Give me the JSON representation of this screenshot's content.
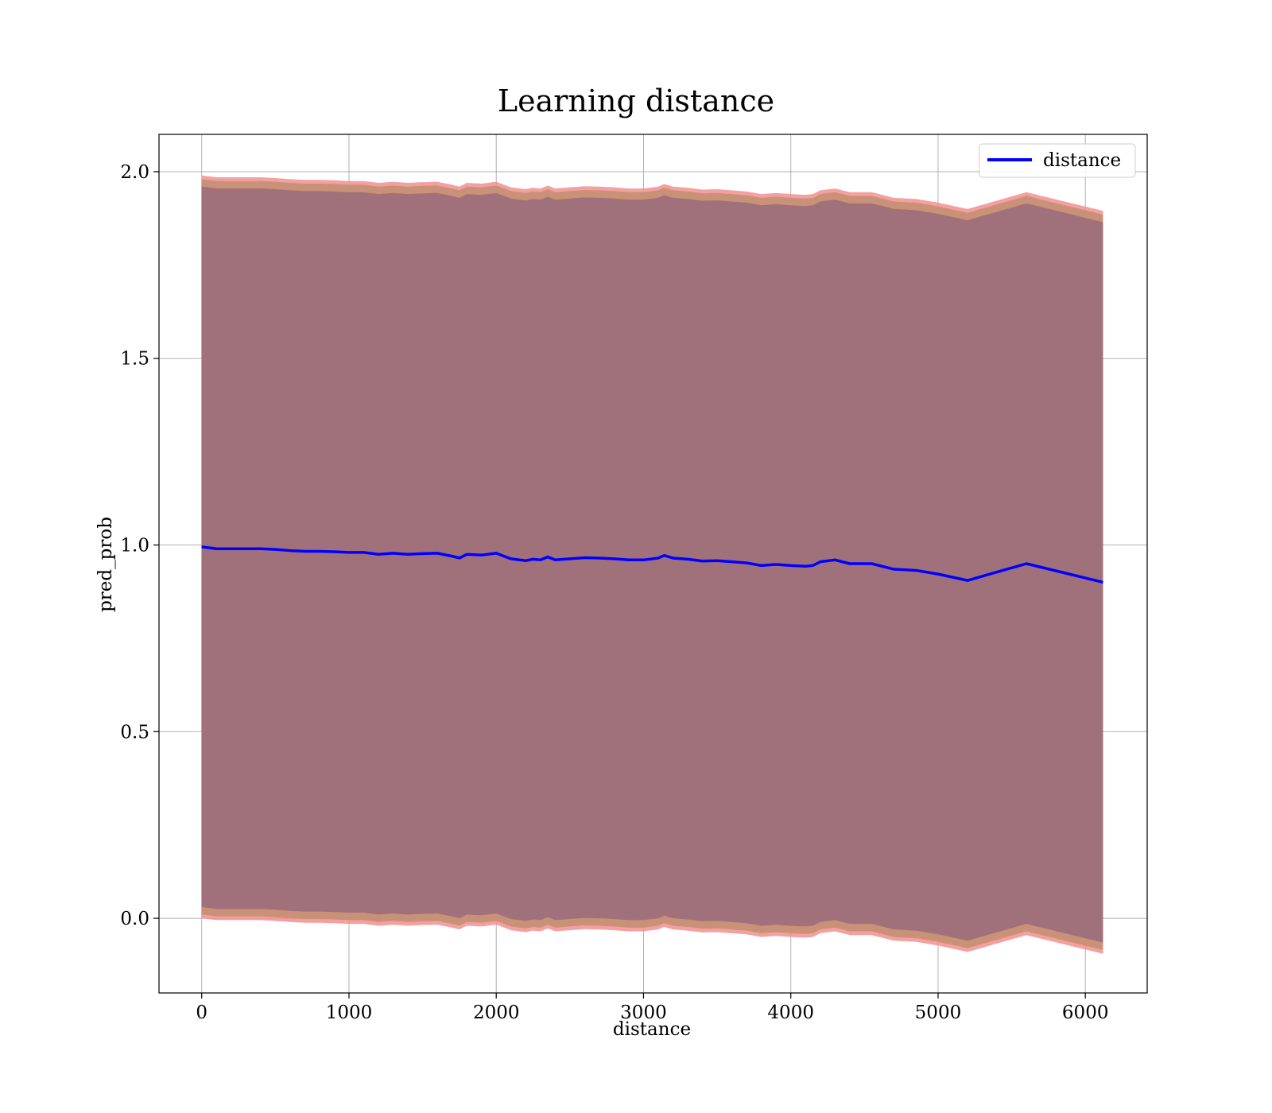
{
  "chart_data": {
    "type": "line",
    "title": "Learning distance",
    "xlabel": "distance",
    "ylabel": "pred_prob",
    "xlim": [
      -290,
      6420
    ],
    "ylim": [
      -0.2,
      2.1
    ],
    "xticks": [
      0,
      1000,
      2000,
      3000,
      4000,
      5000,
      6000
    ],
    "yticks": [
      0.0,
      0.5,
      1.0,
      1.5,
      2.0
    ],
    "xtick_labels": [
      "0",
      "1000",
      "2000",
      "3000",
      "4000",
      "5000",
      "6000"
    ],
    "ytick_labels": [
      "0.0",
      "0.5",
      "1.0",
      "1.5",
      "2.0"
    ],
    "grid": true,
    "legend_position": "upper-right",
    "colors": {
      "line": "#0000ff",
      "band_inner": "#a0717a",
      "band_middle": "#c48f72",
      "band_outer": "#f28f8f"
    },
    "series": [
      {
        "name": "distance",
        "x": [
          0,
          100,
          200,
          300,
          400,
          500,
          600,
          700,
          800,
          900,
          1000,
          1100,
          1200,
          1300,
          1400,
          1500,
          1600,
          1700,
          1750,
          1800,
          1900,
          2000,
          2100,
          2200,
          2250,
          2300,
          2350,
          2400,
          2500,
          2600,
          2700,
          2800,
          2900,
          3000,
          3100,
          3140,
          3200,
          3300,
          3400,
          3500,
          3600,
          3700,
          3800,
          3900,
          4000,
          4100,
          4150,
          4200,
          4300,
          4400,
          4550,
          4700,
          4850,
          5000,
          5200,
          5600,
          6120
        ],
        "y": [
          0.995,
          0.99,
          0.99,
          0.99,
          0.99,
          0.988,
          0.985,
          0.983,
          0.983,
          0.982,
          0.98,
          0.98,
          0.975,
          0.978,
          0.975,
          0.977,
          0.978,
          0.97,
          0.965,
          0.975,
          0.973,
          0.978,
          0.963,
          0.958,
          0.962,
          0.96,
          0.968,
          0.96,
          0.963,
          0.966,
          0.965,
          0.963,
          0.96,
          0.96,
          0.965,
          0.972,
          0.965,
          0.962,
          0.957,
          0.958,
          0.955,
          0.952,
          0.945,
          0.948,
          0.945,
          0.943,
          0.945,
          0.955,
          0.96,
          0.95,
          0.95,
          0.935,
          0.932,
          0.922,
          0.905,
          0.95,
          0.9
        ]
      }
    ],
    "bands": [
      {
        "layer": "outer",
        "delta": 0.995
      },
      {
        "layer": "middle",
        "delta": 0.985
      },
      {
        "layer": "inner",
        "delta": 0.965
      }
    ]
  }
}
